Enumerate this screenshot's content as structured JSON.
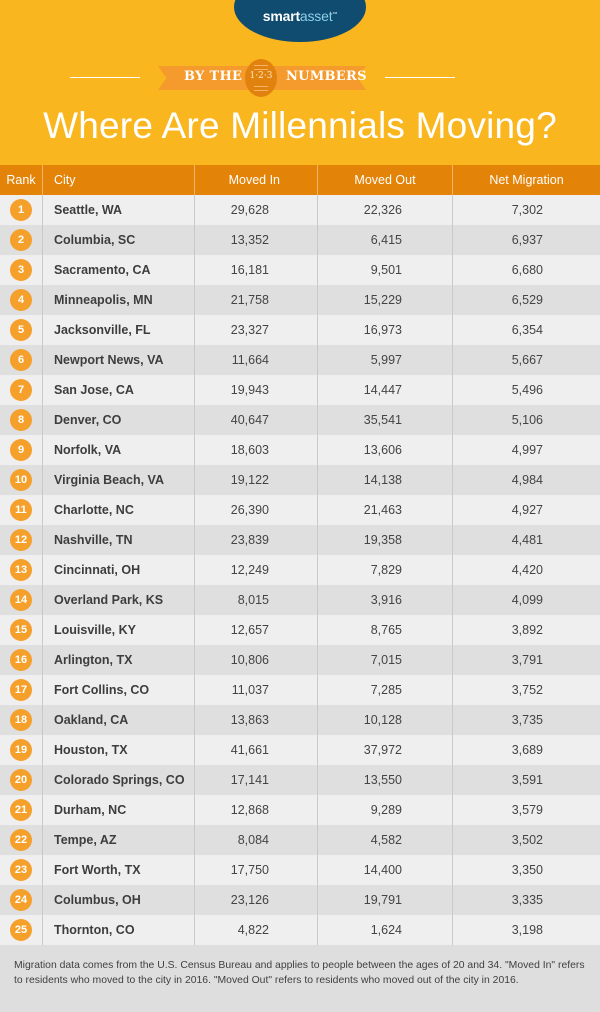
{
  "brand": {
    "logo_bold": "smart",
    "logo_light": "asset",
    "logo_tm": "™"
  },
  "banner": {
    "left": "BY THE",
    "badge": "1·2·3",
    "right": "NUMBERS"
  },
  "title": "Where Are Millennials Moving?",
  "colors": {
    "background": "#f9b61e",
    "header": "#e38308",
    "badge": "#f6a02c",
    "logo": "#0f4c6f"
  },
  "table": {
    "headers": {
      "rank": "Rank",
      "city": "City",
      "moved_in": "Moved In",
      "moved_out": "Moved Out",
      "net": "Net Migration"
    },
    "rows": [
      {
        "rank": "1",
        "city": "Seattle, WA",
        "moved_in": "29,628",
        "moved_out": "22,326",
        "net": "7,302"
      },
      {
        "rank": "2",
        "city": "Columbia, SC",
        "moved_in": "13,352",
        "moved_out": "6,415",
        "net": "6,937"
      },
      {
        "rank": "3",
        "city": "Sacramento, CA",
        "moved_in": "16,181",
        "moved_out": "9,501",
        "net": "6,680"
      },
      {
        "rank": "4",
        "city": "Minneapolis, MN",
        "moved_in": "21,758",
        "moved_out": "15,229",
        "net": "6,529"
      },
      {
        "rank": "5",
        "city": "Jacksonville, FL",
        "moved_in": "23,327",
        "moved_out": "16,973",
        "net": "6,354"
      },
      {
        "rank": "6",
        "city": "Newport News, VA",
        "moved_in": "11,664",
        "moved_out": "5,997",
        "net": "5,667"
      },
      {
        "rank": "7",
        "city": "San Jose, CA",
        "moved_in": "19,943",
        "moved_out": "14,447",
        "net": "5,496"
      },
      {
        "rank": "8",
        "city": "Denver, CO",
        "moved_in": "40,647",
        "moved_out": "35,541",
        "net": "5,106"
      },
      {
        "rank": "9",
        "city": "Norfolk, VA",
        "moved_in": "18,603",
        "moved_out": "13,606",
        "net": "4,997"
      },
      {
        "rank": "10",
        "city": "Virginia Beach, VA",
        "moved_in": "19,122",
        "moved_out": "14,138",
        "net": "4,984"
      },
      {
        "rank": "11",
        "city": "Charlotte, NC",
        "moved_in": "26,390",
        "moved_out": "21,463",
        "net": "4,927"
      },
      {
        "rank": "12",
        "city": "Nashville, TN",
        "moved_in": "23,839",
        "moved_out": "19,358",
        "net": "4,481"
      },
      {
        "rank": "13",
        "city": "Cincinnati, OH",
        "moved_in": "12,249",
        "moved_out": "7,829",
        "net": "4,420"
      },
      {
        "rank": "14",
        "city": "Overland Park, KS",
        "moved_in": "8,015",
        "moved_out": "3,916",
        "net": "4,099"
      },
      {
        "rank": "15",
        "city": "Louisville, KY",
        "moved_in": "12,657",
        "moved_out": "8,765",
        "net": "3,892"
      },
      {
        "rank": "16",
        "city": "Arlington, TX",
        "moved_in": "10,806",
        "moved_out": "7,015",
        "net": "3,791"
      },
      {
        "rank": "17",
        "city": "Fort Collins, CO",
        "moved_in": "11,037",
        "moved_out": "7,285",
        "net": "3,752"
      },
      {
        "rank": "18",
        "city": "Oakland, CA",
        "moved_in": "13,863",
        "moved_out": "10,128",
        "net": "3,735"
      },
      {
        "rank": "19",
        "city": "Houston, TX",
        "moved_in": "41,661",
        "moved_out": "37,972",
        "net": "3,689"
      },
      {
        "rank": "20",
        "city": "Colorado Springs, CO",
        "moved_in": "17,141",
        "moved_out": "13,550",
        "net": "3,591"
      },
      {
        "rank": "21",
        "city": "Durham, NC",
        "moved_in": "12,868",
        "moved_out": "9,289",
        "net": "3,579"
      },
      {
        "rank": "22",
        "city": "Tempe, AZ",
        "moved_in": "8,084",
        "moved_out": "4,582",
        "net": "3,502"
      },
      {
        "rank": "23",
        "city": "Fort Worth, TX",
        "moved_in": "17,750",
        "moved_out": "14,400",
        "net": "3,350"
      },
      {
        "rank": "24",
        "city": "Columbus, OH",
        "moved_in": "23,126",
        "moved_out": "19,791",
        "net": "3,335"
      },
      {
        "rank": "25",
        "city": "Thornton, CO",
        "moved_in": "4,822",
        "moved_out": "1,624",
        "net": "3,198"
      }
    ]
  },
  "footer": "Migration data comes from the U.S. Census Bureau and applies to people between the ages of 20 and 34. \"Moved In\" refers to residents who moved to the city in 2016. \"Moved Out\" refers to residents who moved out of the city in 2016."
}
